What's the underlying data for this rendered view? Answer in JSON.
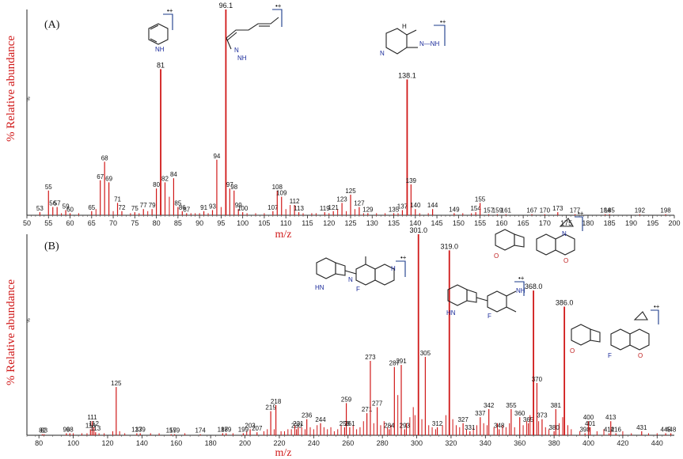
{
  "chart_data": [
    {
      "type": "bar",
      "panel_label": "(A)",
      "ylabel": "% Relative abundance",
      "ylabel_small": "%",
      "xlabel": "m/z",
      "xlim": [
        50,
        200
      ],
      "ylim": [
        0,
        100
      ],
      "x_ticks": [
        50,
        55,
        60,
        65,
        70,
        75,
        80,
        85,
        90,
        95,
        100,
        105,
        110,
        115,
        120,
        125,
        130,
        135,
        140,
        145,
        150,
        155,
        160,
        165,
        170,
        175,
        180,
        185,
        190,
        195,
        200
      ],
      "color": "#d01818",
      "peaks": [
        {
          "x": 53,
          "y": 1.5,
          "label": "53"
        },
        {
          "x": 55,
          "y": 12,
          "label": "55"
        },
        {
          "x": 56,
          "y": 4,
          "label": "56"
        },
        {
          "x": 57,
          "y": 4,
          "label": "57"
        },
        {
          "x": 59,
          "y": 2.5,
          "label": "59"
        },
        {
          "x": 60,
          "y": 1,
          "label": "60"
        },
        {
          "x": 65,
          "y": 2,
          "label": "65"
        },
        {
          "x": 67,
          "y": 17,
          "label": "67"
        },
        {
          "x": 68,
          "y": 26,
          "label": "68"
        },
        {
          "x": 69,
          "y": 16,
          "label": "69"
        },
        {
          "x": 71,
          "y": 6,
          "label": "71"
        },
        {
          "x": 72,
          "y": 2,
          "label": "72"
        },
        {
          "x": 75,
          "y": 1.5,
          "label": "75"
        },
        {
          "x": 77,
          "y": 3,
          "label": "77"
        },
        {
          "x": 79,
          "y": 3,
          "label": "79"
        },
        {
          "x": 80,
          "y": 13,
          "label": "80"
        },
        {
          "x": 81,
          "y": 71,
          "label": "81"
        },
        {
          "x": 82,
          "y": 16,
          "label": "82"
        },
        {
          "x": 84,
          "y": 18,
          "label": "84"
        },
        {
          "x": 85,
          "y": 4,
          "label": "85"
        },
        {
          "x": 86,
          "y": 2,
          "label": "86"
        },
        {
          "x": 87,
          "y": 1,
          "label": "87"
        },
        {
          "x": 91,
          "y": 2,
          "label": "91"
        },
        {
          "x": 93,
          "y": 2.5,
          "label": "93"
        },
        {
          "x": 94,
          "y": 27,
          "label": "94"
        },
        {
          "x": 96.1,
          "y": 100,
          "label": "96.1"
        },
        {
          "x": 97,
          "y": 13,
          "label": "97"
        },
        {
          "x": 98,
          "y": 12,
          "label": "98"
        },
        {
          "x": 99,
          "y": 3,
          "label": "99"
        },
        {
          "x": 100,
          "y": 1.5,
          "label": "100"
        },
        {
          "x": 107,
          "y": 2,
          "label": "107"
        },
        {
          "x": 108,
          "y": 12,
          "label": "108"
        },
        {
          "x": 109,
          "y": 9,
          "label": "109"
        },
        {
          "x": 112,
          "y": 5,
          "label": "112"
        },
        {
          "x": 113,
          "y": 1.5,
          "label": "113"
        },
        {
          "x": 119,
          "y": 1.5,
          "label": "119"
        },
        {
          "x": 121,
          "y": 2,
          "label": "121"
        },
        {
          "x": 123,
          "y": 6,
          "label": "123"
        },
        {
          "x": 125,
          "y": 10,
          "label": "125"
        },
        {
          "x": 127,
          "y": 4,
          "label": "127"
        },
        {
          "x": 129,
          "y": 1,
          "label": "129"
        },
        {
          "x": 135,
          "y": 1,
          "label": "135"
        },
        {
          "x": 137,
          "y": 2.5,
          "label": "137"
        },
        {
          "x": 138.1,
          "y": 66,
          "label": "138.1"
        },
        {
          "x": 139,
          "y": 15,
          "label": "139"
        },
        {
          "x": 140,
          "y": 3,
          "label": "140"
        },
        {
          "x": 144,
          "y": 3,
          "label": "144"
        },
        {
          "x": 149,
          "y": 1,
          "label": "149"
        },
        {
          "x": 154,
          "y": 1.5,
          "label": "154"
        },
        {
          "x": 155,
          "y": 6,
          "label": "155"
        },
        {
          "x": 157,
          "y": 0.5,
          "label": "157"
        },
        {
          "x": 159,
          "y": 0.5,
          "label": "159"
        },
        {
          "x": 161,
          "y": 0.5,
          "label": "161"
        },
        {
          "x": 167,
          "y": 0.5,
          "label": "167"
        },
        {
          "x": 170,
          "y": 0.5,
          "label": "170"
        },
        {
          "x": 173,
          "y": 1.5,
          "label": "173"
        },
        {
          "x": 177,
          "y": 0.5,
          "label": "177"
        },
        {
          "x": 184,
          "y": 0.5,
          "label": "184"
        },
        {
          "x": 185,
          "y": 0.5,
          "label": "185"
        },
        {
          "x": 192,
          "y": 0.5,
          "label": "192"
        },
        {
          "x": 198,
          "y": 0.5,
          "label": "198"
        }
      ],
      "unlabeled_peaks": [
        [
          58,
          1
        ],
        [
          62,
          1
        ],
        [
          66,
          3
        ],
        [
          70,
          2
        ],
        [
          74,
          1
        ],
        [
          76,
          1
        ],
        [
          78,
          2
        ],
        [
          83,
          9
        ],
        [
          88,
          1
        ],
        [
          89,
          1
        ],
        [
          90,
          1
        ],
        [
          92,
          1
        ],
        [
          95,
          4
        ],
        [
          101,
          1
        ],
        [
          103,
          1
        ],
        [
          105,
          1
        ],
        [
          110,
          3
        ],
        [
          111,
          5
        ],
        [
          114,
          1
        ],
        [
          116,
          1
        ],
        [
          117,
          1
        ],
        [
          120,
          1
        ],
        [
          122,
          3
        ],
        [
          124,
          2
        ],
        [
          126,
          3
        ],
        [
          128,
          1
        ],
        [
          131,
          1
        ],
        [
          133,
          1
        ],
        [
          136,
          1
        ],
        [
          141,
          1
        ],
        [
          143,
          1
        ],
        [
          151,
          1
        ],
        [
          153,
          1
        ]
      ]
    },
    {
      "type": "bar",
      "panel_label": "(B)",
      "ylabel": "% Relative abundance",
      "ylabel_small": "%",
      "xlabel": "m/z",
      "xlim": [
        73,
        450
      ],
      "ylim": [
        0,
        100
      ],
      "x_ticks": [
        80,
        100,
        120,
        140,
        160,
        180,
        200,
        220,
        240,
        260,
        280,
        300,
        320,
        340,
        360,
        380,
        400,
        420,
        440
      ],
      "color": "#d01818",
      "peaks": [
        {
          "x": 82,
          "y": 0.5,
          "label": "82"
        },
        {
          "x": 83,
          "y": 0.5,
          "label": "83"
        },
        {
          "x": 96,
          "y": 1,
          "label": "96"
        },
        {
          "x": 98,
          "y": 1,
          "label": "98"
        },
        {
          "x": 110,
          "y": 3,
          "label": "110"
        },
        {
          "x": 111,
          "y": 7,
          "label": "111"
        },
        {
          "x": 112,
          "y": 4,
          "label": "112"
        },
        {
          "x": 113,
          "y": 1.5,
          "label": "113"
        },
        {
          "x": 125,
          "y": 24,
          "label": "125"
        },
        {
          "x": 137,
          "y": 1,
          "label": "137"
        },
        {
          "x": 139,
          "y": 1,
          "label": "139"
        },
        {
          "x": 157,
          "y": 0.5,
          "label": "157"
        },
        {
          "x": 159,
          "y": 0.5,
          "label": "159"
        },
        {
          "x": 174,
          "y": 0.5,
          "label": "174"
        },
        {
          "x": 187,
          "y": 1,
          "label": "187"
        },
        {
          "x": 189,
          "y": 1,
          "label": "189"
        },
        {
          "x": 199,
          "y": 1,
          "label": "199"
        },
        {
          "x": 203,
          "y": 3,
          "label": "203"
        },
        {
          "x": 207,
          "y": 1.5,
          "label": "207"
        },
        {
          "x": 215,
          "y": 12,
          "label": "215"
        },
        {
          "x": 218,
          "y": 15,
          "label": "218"
        },
        {
          "x": 230,
          "y": 3,
          "label": "230"
        },
        {
          "x": 231,
          "y": 4,
          "label": "231"
        },
        {
          "x": 236,
          "y": 8,
          "label": "236"
        },
        {
          "x": 244,
          "y": 6,
          "label": "244"
        },
        {
          "x": 258,
          "y": 4,
          "label": "258"
        },
        {
          "x": 259,
          "y": 16,
          "label": "259"
        },
        {
          "x": 261,
          "y": 4,
          "label": "261"
        },
        {
          "x": 271,
          "y": 11,
          "label": "271"
        },
        {
          "x": 273,
          "y": 37,
          "label": "273"
        },
        {
          "x": 277,
          "y": 14,
          "label": "277"
        },
        {
          "x": 284,
          "y": 3,
          "label": "284"
        },
        {
          "x": 287,
          "y": 34,
          "label": "287"
        },
        {
          "x": 291,
          "y": 35,
          "label": "291"
        },
        {
          "x": 293,
          "y": 3,
          "label": "293"
        },
        {
          "x": 301,
          "y": 100,
          "label": "301.0"
        },
        {
          "x": 305,
          "y": 39,
          "label": "305"
        },
        {
          "x": 312,
          "y": 4,
          "label": "312"
        },
        {
          "x": 319,
          "y": 92,
          "label": "319.0"
        },
        {
          "x": 327,
          "y": 6,
          "label": "327"
        },
        {
          "x": 331,
          "y": 2,
          "label": "331"
        },
        {
          "x": 337,
          "y": 9,
          "label": "337"
        },
        {
          "x": 342,
          "y": 13,
          "label": "342"
        },
        {
          "x": 348,
          "y": 3,
          "label": "348"
        },
        {
          "x": 355,
          "y": 13,
          "label": "355"
        },
        {
          "x": 360,
          "y": 9,
          "label": "360"
        },
        {
          "x": 365,
          "y": 6,
          "label": "365"
        },
        {
          "x": 368,
          "y": 72,
          "label": "368.0"
        },
        {
          "x": 370,
          "y": 26,
          "label": "370"
        },
        {
          "x": 373,
          "y": 8,
          "label": "373"
        },
        {
          "x": 380,
          "y": 2,
          "label": "380"
        },
        {
          "x": 381,
          "y": 13,
          "label": "381"
        },
        {
          "x": 386,
          "y": 64,
          "label": "386.0"
        },
        {
          "x": 398,
          "y": 1,
          "label": "398"
        },
        {
          "x": 400,
          "y": 7,
          "label": "400"
        },
        {
          "x": 401,
          "y": 4,
          "label": "401"
        },
        {
          "x": 412,
          "y": 1,
          "label": "412"
        },
        {
          "x": 413,
          "y": 7,
          "label": "413"
        },
        {
          "x": 416,
          "y": 1,
          "label": "416"
        },
        {
          "x": 431,
          "y": 2,
          "label": "431"
        },
        {
          "x": 445,
          "y": 1,
          "label": "445"
        },
        {
          "x": 448,
          "y": 1,
          "label": "448"
        }
      ],
      "unlabeled_peaks": [
        [
          100,
          1
        ],
        [
          105,
          1
        ],
        [
          108,
          1
        ],
        [
          115,
          1
        ],
        [
          118,
          1
        ],
        [
          123,
          2
        ],
        [
          127,
          2
        ],
        [
          130,
          1
        ],
        [
          145,
          1
        ],
        [
          150,
          1
        ],
        [
          165,
          1
        ],
        [
          193,
          1
        ],
        [
          201,
          2
        ],
        [
          211,
          2
        ],
        [
          213,
          3
        ],
        [
          217,
          3
        ],
        [
          221,
          2
        ],
        [
          223,
          2
        ],
        [
          225,
          3
        ],
        [
          227,
          3
        ],
        [
          229,
          5
        ],
        [
          233,
          4
        ],
        [
          235,
          3
        ],
        [
          238,
          4
        ],
        [
          240,
          3
        ],
        [
          242,
          5
        ],
        [
          246,
          4
        ],
        [
          248,
          3
        ],
        [
          250,
          4
        ],
        [
          252,
          2
        ],
        [
          254,
          3
        ],
        [
          256,
          5
        ],
        [
          263,
          5
        ],
        [
          265,
          3
        ],
        [
          267,
          4
        ],
        [
          269,
          7
        ],
        [
          275,
          6
        ],
        [
          279,
          5
        ],
        [
          281,
          7
        ],
        [
          283,
          4
        ],
        [
          285,
          5
        ],
        [
          289,
          20
        ],
        [
          294,
          6
        ],
        [
          296,
          9
        ],
        [
          298,
          14
        ],
        [
          299,
          10
        ],
        [
          303,
          8
        ],
        [
          307,
          5
        ],
        [
          309,
          4
        ],
        [
          311,
          3
        ],
        [
          315,
          5
        ],
        [
          317,
          10
        ],
        [
          321,
          8
        ],
        [
          323,
          5
        ],
        [
          325,
          4
        ],
        [
          329,
          3
        ],
        [
          333,
          4
        ],
        [
          335,
          5
        ],
        [
          339,
          6
        ],
        [
          341,
          5
        ],
        [
          345,
          4
        ],
        [
          347,
          6
        ],
        [
          350,
          5
        ],
        [
          352,
          4
        ],
        [
          354,
          6
        ],
        [
          357,
          4
        ],
        [
          362,
          5
        ],
        [
          364,
          7
        ],
        [
          366,
          10
        ],
        [
          371,
          7
        ],
        [
          375,
          4
        ],
        [
          377,
          3
        ],
        [
          383,
          6
        ],
        [
          385,
          9
        ],
        [
          388,
          5
        ],
        [
          390,
          3
        ],
        [
          395,
          2
        ],
        [
          405,
          2
        ],
        [
          409,
          3
        ],
        [
          420,
          2
        ],
        [
          425,
          1
        ],
        [
          435,
          1
        ],
        [
          440,
          1
        ]
      ]
    }
  ],
  "structure_labels": {
    "a_m81": "81",
    "a_m96": "96.1",
    "a_m138": "138.1",
    "b_m301": "301.0",
    "b_m319": "319.0",
    "b_m368": "368.0",
    "b_m386": "386.0",
    "radical_cation": "•+",
    "atom_N": "N",
    "atom_H": "H",
    "atom_NH": "NH",
    "atom_HN": "HN",
    "atom_F": "F",
    "atom_O": "O",
    "atom_NNH": "N—NH"
  }
}
